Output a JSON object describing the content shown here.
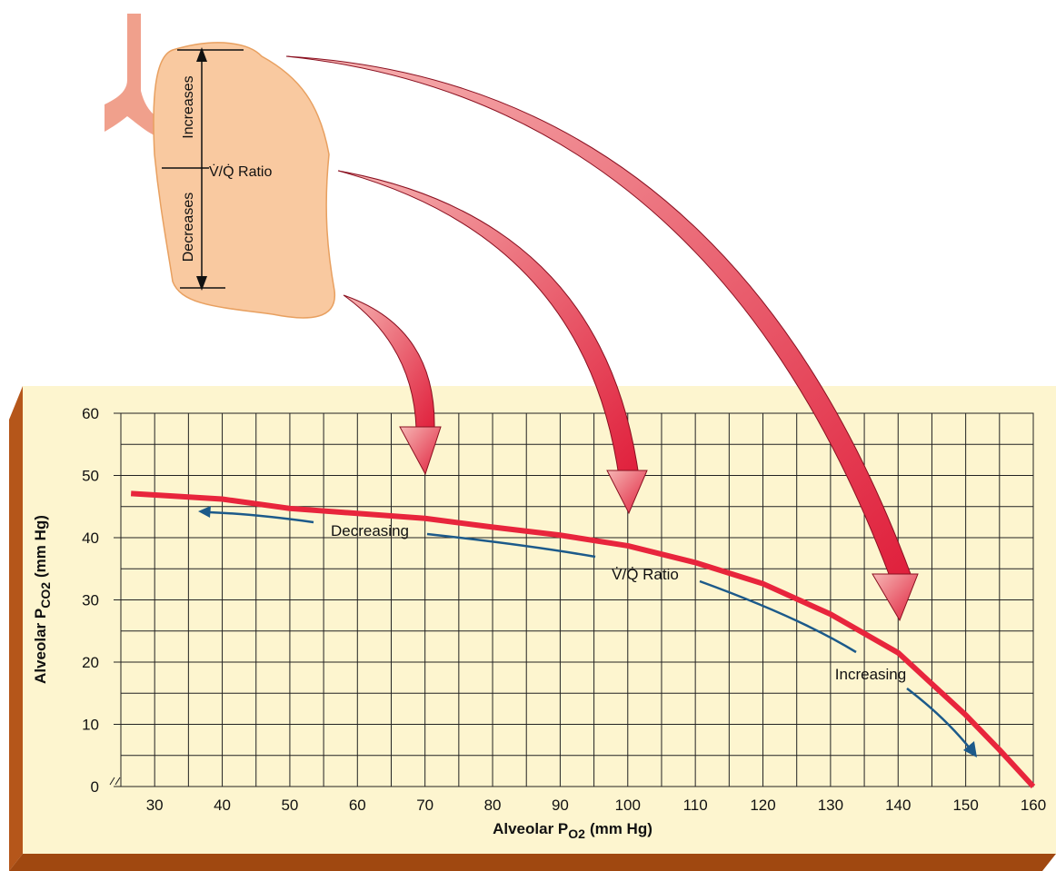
{
  "chart_data": {
    "type": "line",
    "x": [
      26.5,
      40,
      50,
      70,
      80,
      90,
      100,
      110,
      120,
      130,
      140,
      150,
      155,
      160
    ],
    "series": [
      {
        "color": "#e8253c",
        "values": [
          47.1,
          46.2,
          44.7,
          43.1,
          41.7,
          40.4,
          38.7,
          36,
          32.6,
          27.7,
          21.5,
          11.5,
          5.9,
          0
        ]
      }
    ],
    "xlim": [
      25,
      160
    ],
    "xticks": [
      30,
      40,
      50,
      60,
      70,
      80,
      90,
      100,
      110,
      120,
      130,
      140,
      150,
      160
    ],
    "ylim": [
      0,
      60
    ],
    "yticks": [
      0,
      10,
      20,
      30,
      40,
      50,
      60
    ],
    "grid": true,
    "xlabel": "Alveolar P",
    "xlabel_sub": "O2",
    "xlabel_unit": "(mm Hg)",
    "ylabel": "Alveolar P",
    "ylabel_sub": "CO2",
    "ylabel_unit": "(mm Hg)",
    "annotations": [
      "Decreasing",
      "V̇/Q̇ Ratio",
      "Increasing"
    ],
    "lung_labels": [
      "Increases",
      "V̇/Q̇ Ratio",
      "Decreases"
    ]
  }
}
